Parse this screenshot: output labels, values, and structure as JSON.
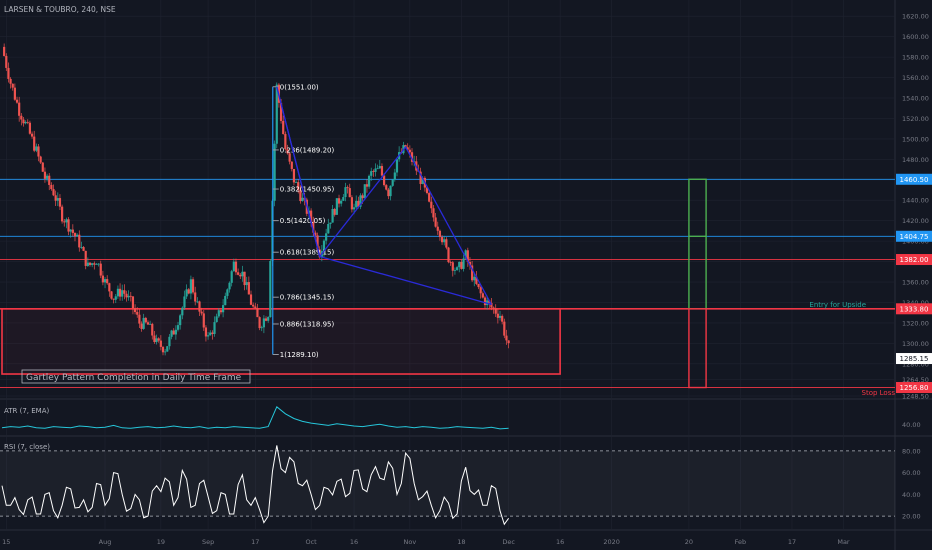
{
  "header": {
    "symbol": "LARSEN & TOUBRO, 240, NSE"
  },
  "colors": {
    "background": "#131722",
    "up": "#26a69a",
    "down": "#ef5350",
    "pattern": "#2a2ad8",
    "fib": "#2196f3",
    "box_red": "#f23645",
    "green": "#4caf50",
    "atr": "#26c6da",
    "rsi": "#ffffff",
    "grid": "#1f2330",
    "axis_text": "#787b86"
  },
  "chart_data": [
    {
      "type": "candlestick",
      "title": "LARSEN & TOUBRO, 240, NSE",
      "ylim": [
        1248.5,
        1630
      ],
      "y_ticks": [
        1620,
        1600,
        1580,
        1560,
        1540,
        1520,
        1500,
        1480,
        1460,
        1440,
        1420,
        1400,
        1380,
        1360,
        1340,
        1320,
        1300,
        1280,
        1264.5,
        1248.5
      ],
      "x_ticks": [
        {
          "label": "15",
          "x": 0.5
        },
        {
          "label": "Aug",
          "x": 12
        },
        {
          "label": "19",
          "x": 18.5
        },
        {
          "label": "Sep",
          "x": 24
        },
        {
          "label": "17",
          "x": 29.5
        },
        {
          "label": "Oct",
          "x": 36
        },
        {
          "label": "16",
          "x": 41
        },
        {
          "label": "Nov",
          "x": 47.5
        },
        {
          "label": "18",
          "x": 53.5
        },
        {
          "label": "Dec",
          "x": 59
        },
        {
          "label": "16",
          "x": 65
        },
        {
          "label": "2020",
          "x": 71
        },
        {
          "label": "20",
          "x": 80
        },
        {
          "label": "Feb",
          "x": 86
        },
        {
          "label": "17",
          "x": 92
        },
        {
          "label": "Mar",
          "x": 98
        }
      ],
      "x_range": [
        0,
        104
      ],
      "price_path": [
        [
          0,
          1590
        ],
        [
          1,
          1555
        ],
        [
          2,
          1528
        ],
        [
          3,
          1510
        ],
        [
          4,
          1488
        ],
        [
          5,
          1462
        ],
        [
          6,
          1448
        ],
        [
          7,
          1425
        ],
        [
          8,
          1412
        ],
        [
          9,
          1398
        ],
        [
          10,
          1375
        ],
        [
          11,
          1382
        ],
        [
          12,
          1360
        ],
        [
          13,
          1345
        ],
        [
          14,
          1352
        ],
        [
          15,
          1340
        ],
        [
          16,
          1320
        ],
        [
          17,
          1318
        ],
        [
          18,
          1300
        ],
        [
          19,
          1295
        ],
        [
          20,
          1312
        ],
        [
          21,
          1335
        ],
        [
          22,
          1360
        ],
        [
          23,
          1330
        ],
        [
          24,
          1305
        ],
        [
          25,
          1322
        ],
        [
          26,
          1345
        ],
        [
          27,
          1378
        ],
        [
          28,
          1368
        ],
        [
          29,
          1340
        ],
        [
          30,
          1318
        ],
        [
          31,
          1330
        ],
        [
          32,
          1551
        ],
        [
          33,
          1490
        ],
        [
          34,
          1460
        ],
        [
          35,
          1440
        ],
        [
          36,
          1420
        ],
        [
          37,
          1389
        ],
        [
          38,
          1418
        ],
        [
          39,
          1436
        ],
        [
          40,
          1452
        ],
        [
          41,
          1430
        ],
        [
          42,
          1445
        ],
        [
          43,
          1466
        ],
        [
          44,
          1470
        ],
        [
          45,
          1448
        ],
        [
          46,
          1480
        ],
        [
          47,
          1492
        ],
        [
          48,
          1475
        ],
        [
          49,
          1456
        ],
        [
          50,
          1428
        ],
        [
          51,
          1410
        ],
        [
          52,
          1384
        ],
        [
          53,
          1370
        ],
        [
          54,
          1386
        ],
        [
          55,
          1360
        ],
        [
          56,
          1344
        ],
        [
          57,
          1335
        ],
        [
          58,
          1328
        ],
        [
          59,
          1295
        ]
      ],
      "pattern": {
        "name": "Gartley Pattern Completion in Daily Time Frame",
        "points": [
          [
            32,
            1551
          ],
          [
            37,
            1385
          ],
          [
            47,
            1492
          ],
          [
            57,
            1338
          ]
        ]
      },
      "fib_levels": [
        {
          "label": "0(1551.00)",
          "value": 1551.0
        },
        {
          "label": "0.236(1489.20)",
          "value": 1489.2
        },
        {
          "label": "0.382(1450.95)",
          "value": 1450.95
        },
        {
          "label": "0.5(1420.05)",
          "value": 1420.05
        },
        {
          "label": "0.618(1389.15)",
          "value": 1389.15
        },
        {
          "label": "0.786(1345.15)",
          "value": 1345.15
        },
        {
          "label": "0.886(1318.95)",
          "value": 1318.95
        },
        {
          "label": "1(1289.10)",
          "value": 1289.1
        }
      ],
      "fib_x": 32,
      "horizontal_levels": [
        {
          "value": 1460.5,
          "label": "1460.50",
          "kind": "blue"
        },
        {
          "value": 1404.75,
          "label": "1404.75",
          "kind": "blue"
        },
        {
          "value": 1382.0,
          "label": "1382.00",
          "kind": "red"
        },
        {
          "value": 1333.8,
          "label": "1333.80",
          "kind": "red"
        },
        {
          "value": 1256.8,
          "label": "1256.80",
          "kind": "red"
        }
      ],
      "last_price": {
        "value": 1285.15,
        "label": "1285.15"
      },
      "zone": {
        "x_start": 0,
        "x_end": 65,
        "top": 1333.8,
        "bottom": 1270
      },
      "trade_box": {
        "x_start": 80,
        "x_end": 82,
        "entry": 1333.8,
        "target1": 1404.75,
        "target2": 1460.5,
        "stop": 1256.8
      },
      "annotations": {
        "entry": "Entry for Upside",
        "stop": "Stop Loss"
      }
    },
    {
      "type": "line",
      "title": "ATR (7, EMA)",
      "y_ticks": [
        40.0
      ],
      "ylim": [
        25,
        80
      ],
      "values": [
        34,
        36,
        35,
        37,
        34,
        33,
        36,
        35,
        34,
        37,
        36,
        34,
        35,
        38,
        34,
        33,
        35,
        36,
        34,
        35,
        37,
        35,
        34,
        36,
        33,
        35,
        34,
        36,
        35,
        34,
        33,
        36,
        70,
        58,
        50,
        45,
        42,
        40,
        38,
        41,
        39,
        37,
        36,
        38,
        40,
        37,
        35,
        36,
        34,
        36,
        35,
        33,
        34,
        36,
        35,
        34,
        33,
        35,
        32,
        33
      ]
    },
    {
      "type": "line",
      "title": "RSI (7, close)",
      "y_ticks": [
        80.0,
        60.0,
        40.0,
        20.0
      ],
      "ylim": [
        10,
        90
      ],
      "bands": [
        80,
        20
      ],
      "values": [
        48,
        30,
        26,
        35,
        22,
        40,
        25,
        30,
        45,
        28,
        24,
        50,
        30,
        60,
        40,
        27,
        35,
        20,
        48,
        55,
        30,
        62,
        28,
        50,
        38,
        25,
        40,
        22,
        58,
        30,
        26,
        20,
        85,
        60,
        70,
        48,
        40,
        30,
        45,
        52,
        38,
        62,
        45,
        58,
        55,
        70,
        40,
        78,
        50,
        38,
        30,
        25,
        32,
        22,
        65,
        40,
        30,
        48,
        25,
        18
      ]
    },
    {
      "type": "text",
      "legend": "Gartley Pattern Completion in Daily Time Frame"
    }
  ]
}
